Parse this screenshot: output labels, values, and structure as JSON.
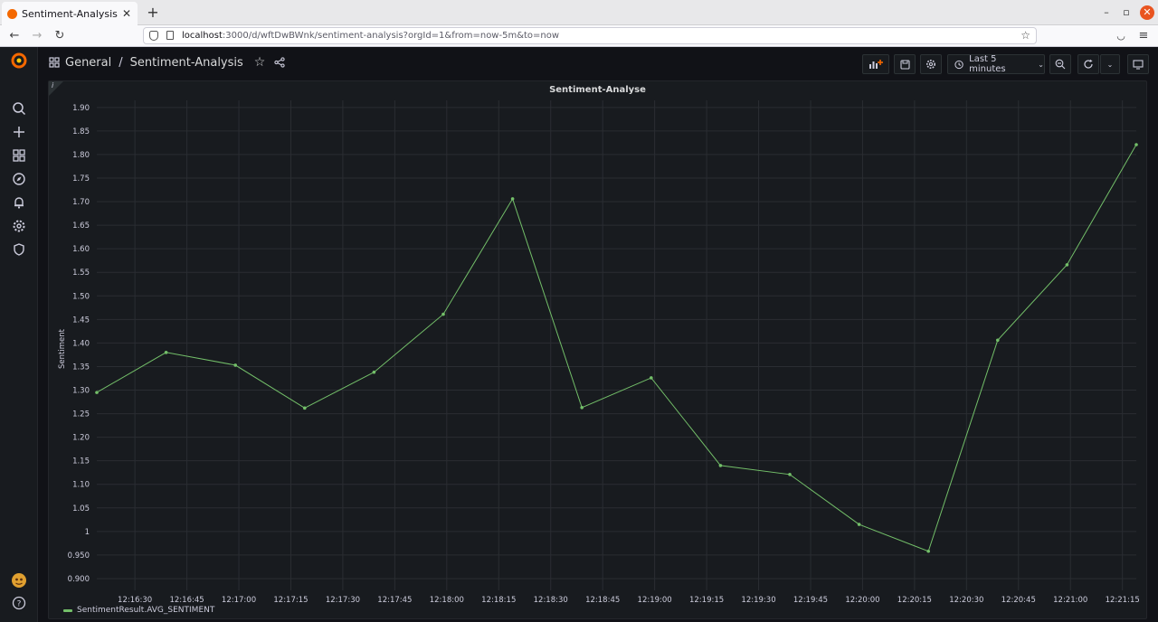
{
  "browser": {
    "tab_title": "Sentiment-Analysis - Graf",
    "tab_close": "✕",
    "new_tab": "+",
    "url_host": "localhost",
    "url_rest": ":3000/d/wftDwBWnk/sentiment-analysis?orgId=1&from=now-5m&to=now"
  },
  "header": {
    "breadcrumb_folder": "General",
    "breadcrumb_separator": "/",
    "dashboard_title": "Sentiment-Analysis",
    "time_range": "Last 5 minutes"
  },
  "sidebar": {
    "items": [
      "search-icon",
      "plus-icon",
      "dashboards-icon",
      "explore-icon",
      "alerting-icon",
      "settings-icon",
      "shield-icon"
    ]
  },
  "panel": {
    "title": "Sentiment-Analyse",
    "info": "i"
  },
  "chart_data": {
    "type": "line",
    "ylabel": "Sentiment",
    "xlabel": "",
    "ylim": [
      0.875,
      1.915
    ],
    "yticks": [
      {
        "v": 0.9,
        "label": "0.900"
      },
      {
        "v": 0.95,
        "label": "0.950"
      },
      {
        "v": 1.0,
        "label": "1"
      },
      {
        "v": 1.05,
        "label": "1.05"
      },
      {
        "v": 1.1,
        "label": "1.10"
      },
      {
        "v": 1.15,
        "label": "1.15"
      },
      {
        "v": 1.2,
        "label": "1.20"
      },
      {
        "v": 1.25,
        "label": "1.25"
      },
      {
        "v": 1.3,
        "label": "1.30"
      },
      {
        "v": 1.35,
        "label": "1.35"
      },
      {
        "v": 1.4,
        "label": "1.40"
      },
      {
        "v": 1.45,
        "label": "1.45"
      },
      {
        "v": 1.5,
        "label": "1.50"
      },
      {
        "v": 1.55,
        "label": "1.55"
      },
      {
        "v": 1.6,
        "label": "1.60"
      },
      {
        "v": 1.65,
        "label": "1.65"
      },
      {
        "v": 1.7,
        "label": "1.70"
      },
      {
        "v": 1.75,
        "label": "1.75"
      },
      {
        "v": 1.8,
        "label": "1.80"
      },
      {
        "v": 1.85,
        "label": "1.85"
      },
      {
        "v": 1.9,
        "label": "1.90"
      }
    ],
    "xticks": [
      "12:16:30",
      "12:16:45",
      "12:17:00",
      "12:17:15",
      "12:17:30",
      "12:17:45",
      "12:18:00",
      "12:18:15",
      "12:18:30",
      "12:18:45",
      "12:19:00",
      "12:19:15",
      "12:19:30",
      "12:19:45",
      "12:20:00",
      "12:20:15",
      "12:20:30",
      "12:20:45",
      "12:21:00",
      "12:21:15"
    ],
    "xtick_seconds": [
      990,
      1005,
      1020,
      1035,
      1050,
      1065,
      1080,
      1095,
      1110,
      1125,
      1140,
      1155,
      1170,
      1185,
      1200,
      1215,
      1230,
      1245,
      1260,
      1275
    ],
    "x_start_seconds": 979,
    "x_end_seconds": 1279,
    "line_color": "#73bf69",
    "series": [
      {
        "name": "SentimentResult.AVG_SENTIMENT",
        "x": [
          979,
          999,
          1019,
          1039,
          1059,
          1079,
          1099,
          1119,
          1139,
          1159,
          1179,
          1199,
          1219,
          1239,
          1259,
          1279
        ],
        "values": [
          1.295,
          1.38,
          1.353,
          1.262,
          1.338,
          1.461,
          1.706,
          1.263,
          1.326,
          1.14,
          1.121,
          1.015,
          0.958,
          1.406,
          1.566,
          1.821
        ]
      }
    ]
  }
}
